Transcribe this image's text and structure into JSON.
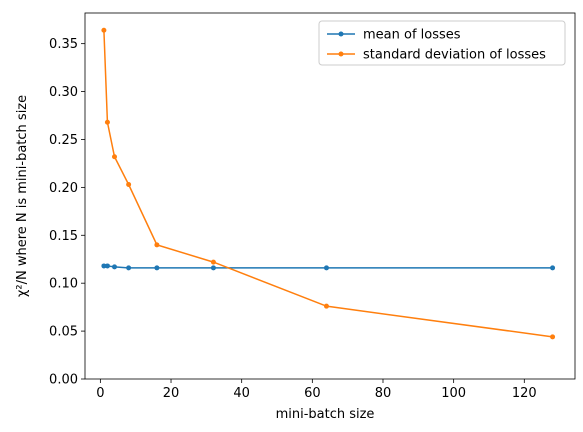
{
  "chart_data": {
    "type": "line",
    "xlabel": "mini-batch size",
    "ylabel": "χ²/N where N is mini-batch size",
    "xlim": [
      -4.35,
      134.35
    ],
    "ylim": [
      0,
      0.382
    ],
    "xticks": [
      0,
      20,
      40,
      60,
      80,
      100,
      120
    ],
    "yticks": [
      0.0,
      0.05,
      0.1,
      0.15,
      0.2,
      0.25,
      0.3,
      0.35
    ],
    "ytick_labels": [
      "0.00",
      "0.05",
      "0.10",
      "0.15",
      "0.20",
      "0.25",
      "0.30",
      "0.35"
    ],
    "legend_position": "top-right",
    "grid": false,
    "x": [
      1,
      2,
      4,
      8,
      16,
      32,
      64,
      128
    ],
    "series": [
      {
        "name": "mean of losses",
        "color": "#1f77b4",
        "values": [
          0.118,
          0.118,
          0.117,
          0.116,
          0.116,
          0.116,
          0.116,
          0.116
        ]
      },
      {
        "name": "standard deviation of losses",
        "color": "#ff7f0e",
        "values": [
          0.364,
          0.268,
          0.232,
          0.203,
          0.14,
          0.122,
          0.076,
          0.044
        ]
      }
    ]
  }
}
